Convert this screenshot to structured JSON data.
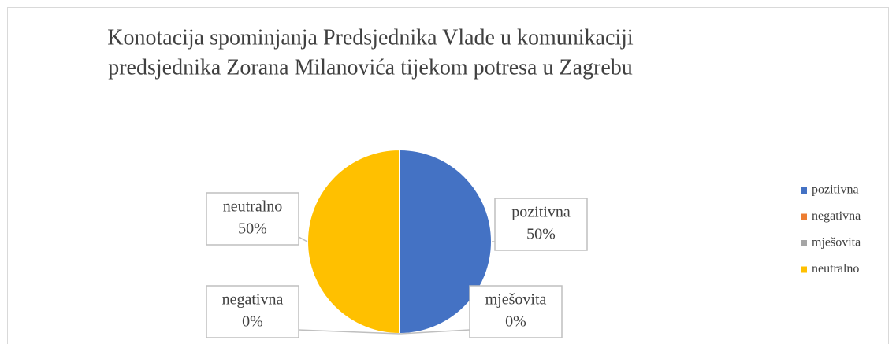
{
  "chart_data": {
    "type": "pie",
    "title": [
      "Konotacija spominjanja Predsjednika Vlade u komunikaciji",
      "predsjednika Zorana Milanovića tijekom potresa u Zagrebu"
    ],
    "categories": [
      "pozitivna",
      "negativna",
      "mješovita",
      "neutralno"
    ],
    "values": [
      50,
      0,
      0,
      50
    ],
    "value_labels": [
      "50%",
      "0%",
      "0%",
      "50%"
    ],
    "colors": [
      "#4472c4",
      "#ed7d31",
      "#a5a5a5",
      "#ffc000"
    ],
    "legend": "right"
  }
}
